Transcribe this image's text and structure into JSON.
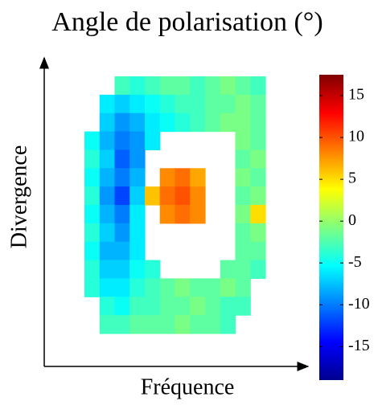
{
  "chart_data": {
    "type": "heatmap",
    "title": "Angle de polarisation (°)",
    "x_label": "Fréquence",
    "y_label": "Divergence",
    "colormap": "jet",
    "clim": [
      -19,
      17.5
    ],
    "colorbar_ticks": [
      15,
      10,
      5,
      0,
      -5,
      -10,
      -15
    ],
    "z": [
      [
        null,
        null,
        -3,
        -4,
        -3,
        -2,
        -2,
        -3,
        -2,
        -1,
        -2,
        -3
      ],
      [
        null,
        -6,
        -7,
        -6,
        -5,
        -4,
        -3,
        -3,
        -2,
        -2,
        -1,
        -2
      ],
      [
        null,
        -7,
        -9,
        -8,
        -6,
        -5,
        -4,
        -3,
        -2,
        -1,
        -1,
        -2
      ],
      [
        -5,
        -8,
        -10,
        -9,
        -6,
        null,
        null,
        null,
        null,
        null,
        -1,
        -2
      ],
      [
        -4,
        -7,
        -11,
        -9,
        null,
        null,
        null,
        null,
        null,
        null,
        -2,
        -1
      ],
      [
        -5,
        -8,
        -10,
        -8,
        null,
        8,
        9,
        7,
        null,
        null,
        -1,
        -2
      ],
      [
        -4,
        -9,
        -12,
        -7,
        6,
        9,
        10,
        8,
        null,
        null,
        -2,
        -1
      ],
      [
        -5,
        -8,
        -10,
        -6,
        null,
        8,
        9,
        8,
        null,
        null,
        -1,
        5
      ],
      [
        -4,
        -7,
        -9,
        -6,
        null,
        null,
        null,
        null,
        null,
        null,
        -2,
        -1
      ],
      [
        -5,
        -8,
        -8,
        -6,
        null,
        null,
        null,
        null,
        null,
        null,
        -2,
        -2
      ],
      [
        -4,
        -7,
        -7,
        -5,
        -4,
        null,
        null,
        null,
        null,
        -2,
        -2,
        -3
      ],
      [
        -4,
        -6,
        -6,
        -4,
        -3,
        -2,
        -1,
        -2,
        -2,
        -1,
        -2,
        null
      ],
      [
        null,
        -4,
        -5,
        -3,
        -3,
        -2,
        -2,
        -1,
        -2,
        -3,
        -3,
        null
      ],
      [
        null,
        -3,
        -3,
        -2,
        -2,
        -2,
        -1,
        -2,
        -2,
        -3,
        null,
        null
      ]
    ]
  }
}
